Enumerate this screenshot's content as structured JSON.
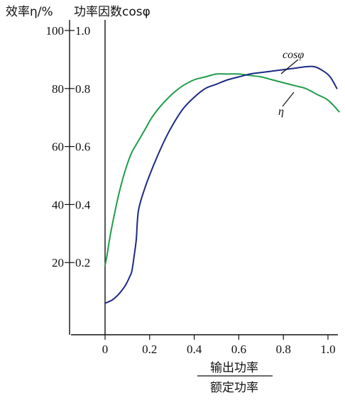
{
  "chart_data": {
    "type": "line",
    "left_axis_label": "效率η/%",
    "right_axis_label": "功率因数cosφ",
    "x_label_numerator": "输出功率",
    "x_label_denominator": "额定功率",
    "x_ticks": [
      "0",
      "0.2",
      "0.4",
      "0.6",
      "0.8",
      "1.0"
    ],
    "y_ticks_left": [
      "20",
      "40",
      "60",
      "80",
      "100"
    ],
    "y_ticks_right": [
      "0.2",
      "0.4",
      "0.6",
      "0.8",
      "1.0"
    ],
    "x_range": [
      0,
      1.05
    ],
    "y_range_left": [
      0,
      100
    ],
    "y_range_right": [
      0,
      1.0
    ],
    "grid": false,
    "series": [
      {
        "name": "η",
        "color": "#1e9e4a",
        "axis": "left",
        "x": [
          0,
          0.01,
          0.02,
          0.04,
          0.06,
          0.08,
          0.1,
          0.12,
          0.15,
          0.18,
          0.21,
          0.25,
          0.3,
          0.35,
          0.4,
          0.45,
          0.5,
          0.55,
          0.6,
          0.65,
          0.7,
          0.75,
          0.8,
          0.85,
          0.9,
          0.95,
          1.0,
          1.05
        ],
        "values": [
          19,
          23,
          28,
          36,
          43,
          49,
          54,
          58,
          62,
          66,
          70,
          74,
          78,
          81,
          83,
          84,
          85,
          85,
          85,
          84.5,
          84,
          83,
          82,
          81,
          80,
          78,
          76,
          72
        ]
      },
      {
        "name": "cosφ",
        "color": "#1c2a86",
        "axis": "right",
        "x": [
          0,
          0.03,
          0.06,
          0.09,
          0.11,
          0.12,
          0.13,
          0.14,
          0.15,
          0.18,
          0.22,
          0.26,
          0.3,
          0.35,
          0.4,
          0.45,
          0.5,
          0.55,
          0.6,
          0.65,
          0.7,
          0.75,
          0.8,
          0.85,
          0.9,
          0.94,
          0.98,
          1.01,
          1.04
        ],
        "values": [
          0.06,
          0.07,
          0.09,
          0.12,
          0.15,
          0.17,
          0.22,
          0.28,
          0.38,
          0.46,
          0.54,
          0.61,
          0.67,
          0.73,
          0.77,
          0.8,
          0.815,
          0.83,
          0.84,
          0.85,
          0.855,
          0.86,
          0.865,
          0.87,
          0.875,
          0.875,
          0.86,
          0.84,
          0.8
        ]
      }
    ]
  }
}
